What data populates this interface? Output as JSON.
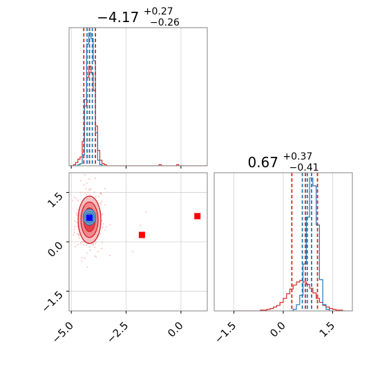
{
  "chart_data": [
    {
      "type": "histogram",
      "panel": "marginal-param-1",
      "title_value": "−4.17",
      "title_plus": "+0.27",
      "title_minus": "−0.26",
      "xlim": [
        -5.1,
        1.2
      ],
      "x_ticks": [
        -5.0,
        -2.5,
        0.0
      ],
      "bin_width": 0.1,
      "series": [
        {
          "color": "#d62728",
          "bin_start": -5.1,
          "counts": [
            0,
            0,
            1,
            3,
            6,
            8,
            22,
            54,
            80,
            90,
            84,
            68,
            36,
            14,
            5,
            2,
            1,
            0,
            0,
            0,
            0,
            0,
            0,
            0,
            0,
            0,
            0,
            0,
            0,
            0,
            0,
            0,
            0,
            0,
            0,
            0,
            0,
            0,
            0,
            0,
            0,
            1,
            0,
            0,
            0,
            0,
            0,
            0,
            0,
            1,
            0,
            0,
            0,
            0,
            0,
            0,
            0,
            0,
            0,
            0,
            0,
            0,
            0
          ],
          "quantiles": [
            -4.43,
            -4.17,
            -3.9
          ]
        },
        {
          "color": "#1f77b4",
          "bin_start": -5.1,
          "counts": [
            0,
            0,
            0,
            0,
            1,
            2,
            10,
            60,
            110,
            120,
            115,
            95,
            30,
            5,
            1,
            0
          ],
          "quantiles": [
            -4.28,
            -4.17,
            -4.04
          ]
        }
      ]
    },
    {
      "type": "scatter-contour",
      "panel": "joint-param-1-param-2",
      "xlim": [
        -5.1,
        1.2
      ],
      "ylim": [
        -2.1,
        2.1
      ],
      "x_ticks": [
        -5.0,
        -2.5,
        0.0
      ],
      "y_ticks": [
        -1.5,
        0.0,
        1.5
      ],
      "tick_labels": [
        "−5.0",
        "−2.5",
        "0.0",
        "−1.5",
        "0.0",
        "1.5"
      ],
      "red_contour_center": [
        -4.17,
        0.67
      ],
      "red_contour_sd": [
        0.26,
        0.39
      ],
      "blue_contour_center": [
        -4.17,
        0.75
      ],
      "blue_contour_sd": [
        0.14,
        0.12
      ],
      "markers": [
        {
          "x": -4.17,
          "y": 0.73,
          "color": "#0000ff"
        },
        {
          "x": -1.78,
          "y": 0.21,
          "color": "#ff0000"
        },
        {
          "x": 0.75,
          "y": 0.78,
          "color": "#ff0000"
        }
      ]
    },
    {
      "type": "histogram",
      "panel": "marginal-param-2",
      "title_value": "0.67",
      "title_plus": "+0.37",
      "title_minus": "−0.41",
      "xlim": [
        -2.1,
        2.1
      ],
      "x_ticks": [
        -1.5,
        0.0,
        1.5
      ],
      "bin_width": 0.1,
      "series": [
        {
          "color": "#d62728",
          "bin_start": -1.5,
          "counts": [
            0,
            0,
            0,
            0,
            0,
            0,
            0,
            0,
            1,
            1,
            2,
            3,
            5,
            7,
            11,
            16,
            22,
            28,
            33,
            37,
            39,
            37,
            34,
            29,
            23,
            16,
            11,
            7,
            5,
            3,
            2,
            1,
            1,
            0
          ],
          "quantiles": [
            0.26,
            0.67,
            1.04
          ]
        },
        {
          "color": "#1f77b4",
          "bin_start": 0.2,
          "counts": [
            0,
            2,
            8,
            20,
            60,
            120,
            170,
            160,
            110,
            40,
            8,
            2,
            0
          ],
          "quantiles": [
            0.58,
            0.73,
            0.86
          ]
        }
      ]
    }
  ]
}
